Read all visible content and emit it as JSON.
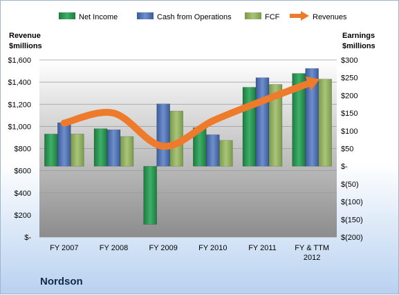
{
  "chart_data": {
    "type": "bar",
    "title": "",
    "company": "Nordson",
    "categories": [
      [
        "FY 2007"
      ],
      [
        "FY 2008"
      ],
      [
        "FY 2009"
      ],
      [
        "FY 2010"
      ],
      [
        "FY 2011"
      ],
      [
        "FY & TTM",
        "2012"
      ]
    ],
    "left_axis": {
      "label_lines": [
        "Revenue",
        "$millions"
      ],
      "ylim": [
        0,
        1600
      ],
      "ticks": [
        0,
        200,
        400,
        600,
        800,
        1000,
        1200,
        1400,
        1600
      ],
      "tick_labels": [
        "$-",
        "$200",
        "$400",
        "$600",
        "$800",
        "$1,000",
        "$1,200",
        "$1,400",
        "$1,600"
      ]
    },
    "right_axis": {
      "label_lines": [
        "Earnings",
        "$millions"
      ],
      "ylim": [
        -200,
        300
      ],
      "ticks": [
        -200,
        -150,
        -100,
        -50,
        0,
        50,
        100,
        150,
        200,
        250,
        300
      ],
      "tick_labels": [
        "$(200)",
        "$(150)",
        "$(100)",
        "$(50)",
        "$-",
        "$50",
        "$100",
        "$150",
        "$200",
        "$250",
        "$300"
      ]
    },
    "series": [
      {
        "name": "Net Income",
        "axis": "right",
        "kind": "bar",
        "color": "#2f9a55",
        "values": [
          91,
          106,
          -164,
          109,
          223,
          262
        ]
      },
      {
        "name": "Cash from Operations",
        "axis": "right",
        "kind": "bar",
        "color": "#4f6fb0",
        "values": [
          123,
          103,
          176,
          89,
          250,
          276
        ]
      },
      {
        "name": "FCF",
        "axis": "right",
        "kind": "bar",
        "color": "#93b063",
        "values": [
          91,
          84,
          156,
          73,
          231,
          246
        ]
      },
      {
        "name": "Revenues",
        "axis": "left",
        "kind": "arrow-line",
        "color": "#ee7a2b",
        "values": [
          1030,
          1120,
          820,
          1050,
          1230,
          1400
        ]
      }
    ],
    "legend": {
      "placement": "top"
    },
    "grid": true
  }
}
